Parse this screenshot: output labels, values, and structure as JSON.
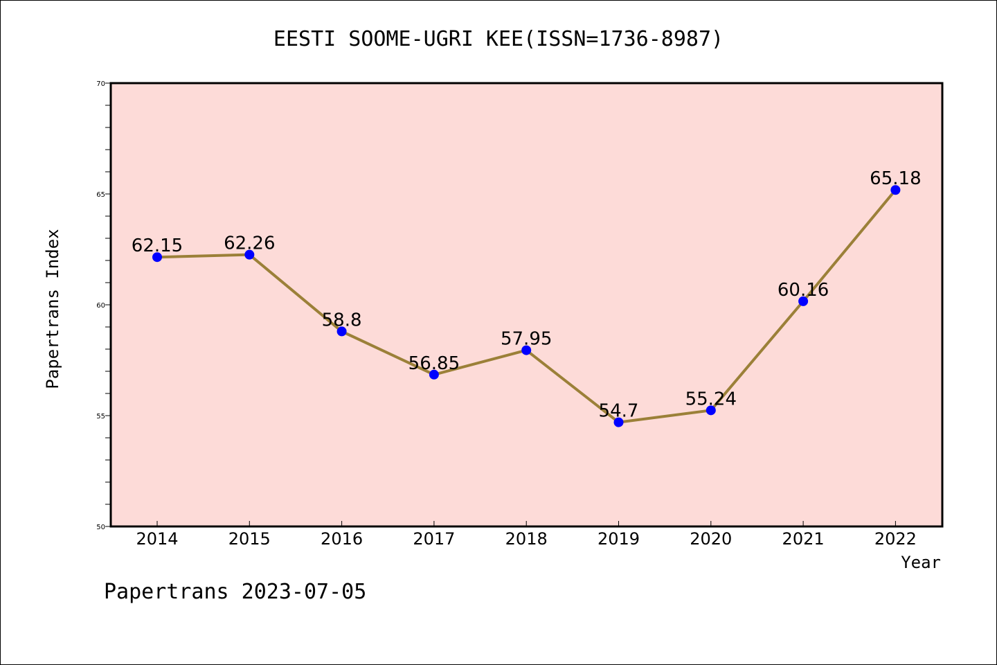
{
  "chart_data": {
    "type": "line",
    "title": "EESTI SOOME-UGRI KEE(ISSN=1736-8987)",
    "xlabel": "Year",
    "ylabel": "Papertrans Index",
    "categories": [
      "2014",
      "2015",
      "2016",
      "2017",
      "2018",
      "2019",
      "2020",
      "2021",
      "2022"
    ],
    "series": [
      {
        "values": [
          62.15,
          62.26,
          58.8,
          56.85,
          57.95,
          54.7,
          55.24,
          60.16,
          65.18
        ],
        "data_labels": [
          "62.15",
          "62.26",
          "58.8",
          "56.85",
          "57.95",
          "54.7",
          "55.24",
          "60.16",
          "65.18"
        ]
      }
    ],
    "ylim": [
      50,
      70
    ],
    "yticks": [
      "50",
      "55",
      "60",
      "65",
      "70"
    ],
    "grid": false,
    "legend": "none"
  },
  "footer": {
    "text": "Papertrans 2023-07-05"
  },
  "colors": {
    "plot_background": "#FDDBD8",
    "line": "#9B8038",
    "marker": "#0000FF",
    "axis": "#000000"
  }
}
